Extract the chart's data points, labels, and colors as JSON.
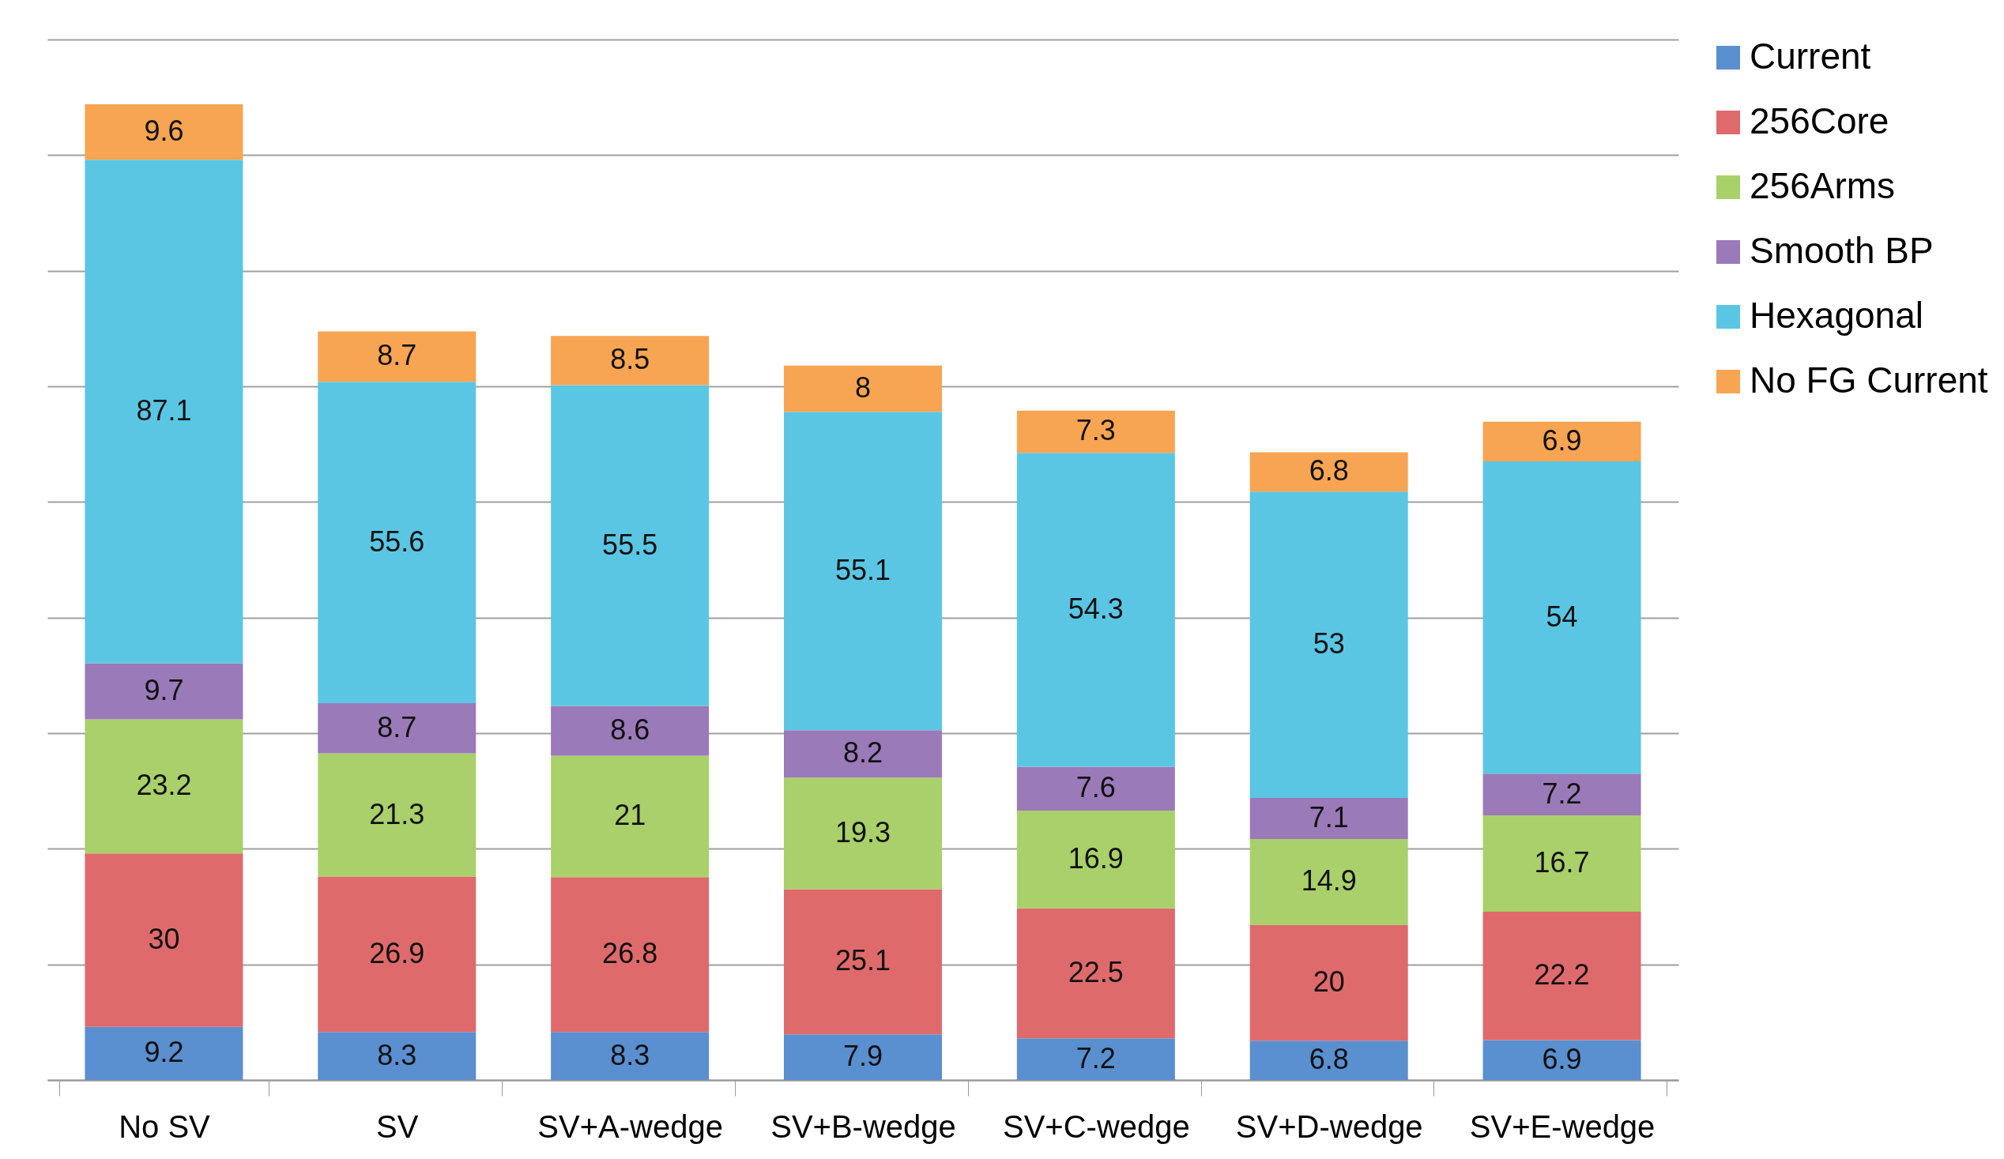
{
  "chart_data": {
    "type": "bar",
    "stacked": true,
    "categories": [
      "No SV",
      "SV",
      "SV+A-wedge",
      "SV+B-wedge",
      "SV+C-wedge",
      "SV+D-wedge",
      "SV+E-wedge"
    ],
    "series": [
      {
        "name": "Current",
        "color": "#5a8fd0",
        "values": [
          9.2,
          8.3,
          8.3,
          7.9,
          7.2,
          6.8,
          6.9
        ]
      },
      {
        "name": "256Core",
        "color": "#df6a6c",
        "values": [
          30,
          26.9,
          26.8,
          25.1,
          22.5,
          20,
          22.2
        ]
      },
      {
        "name": "256Arms",
        "color": "#a9d06a",
        "values": [
          23.2,
          21.3,
          21,
          19.3,
          16.9,
          14.9,
          16.7
        ]
      },
      {
        "name": "Smooth BP",
        "color": "#9a7ab8",
        "values": [
          9.7,
          8.7,
          8.6,
          8.2,
          7.6,
          7.1,
          7.2
        ]
      },
      {
        "name": "Hexagonal",
        "color": "#5ac6e4",
        "values": [
          87.1,
          55.6,
          55.5,
          55.1,
          54.3,
          53,
          54
        ]
      },
      {
        "name": "No FG Current",
        "color": "#f7a552",
        "values": [
          9.6,
          8.7,
          8.5,
          8,
          7.3,
          6.8,
          6.9
        ]
      }
    ],
    "ylim": [
      0,
      180
    ],
    "yticks": [
      {
        "value": 0,
        "label": null
      },
      {
        "value": 20,
        "label": null
      },
      {
        "value": 40,
        "label": null
      },
      {
        "value": 60,
        "label": null
      },
      {
        "value": 80,
        "label": null
      },
      {
        "value": 100,
        "label": null
      },
      {
        "value": 120,
        "label": null
      },
      {
        "value": 140,
        "label": null
      },
      {
        "value": 160,
        "label": null
      },
      {
        "value": 180,
        "label": null
      }
    ],
    "tick_labels": "x",
    "grid": "y",
    "legend": "right",
    "data_labels": true
  }
}
